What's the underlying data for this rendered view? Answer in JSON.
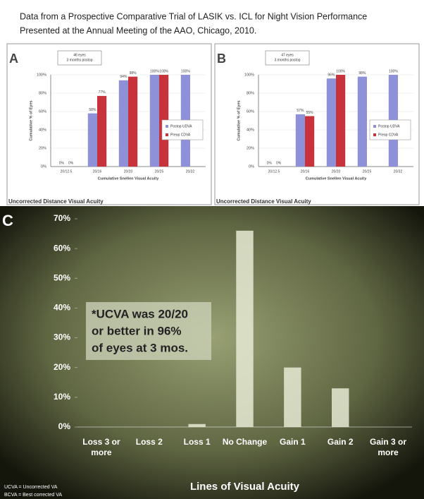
{
  "header": {
    "lines": [
      "Data from a Prospective Comparative Trial of LASIK vs. ICL for Night Vision Performance",
      "Presented at the Annual Meeting of the AAO, Chicago, 2010."
    ]
  },
  "chart_data": [
    {
      "type": "bar",
      "panel_label": "A",
      "annotation": [
        "46 eyes",
        "3 months postop"
      ],
      "y_label": "Cumulative % of Eyes",
      "x_label": "Cumulative Snellen Visual Acuity",
      "footer": "Uncorrected Distance Visual Acuity",
      "categories": [
        "20/12.5",
        "20/16",
        "20/20",
        "20/25",
        "20/32"
      ],
      "series": [
        {
          "name": "Postop UDVA",
          "color": "#8e90d8",
          "values": [
            0,
            58,
            94,
            100,
            100
          ],
          "value_labels": [
            "0%",
            "58%",
            "94%",
            "100%",
            "100%"
          ]
        },
        {
          "name": "Preop CDVA",
          "color": "#c8323a",
          "values": [
            0,
            77,
            98,
            100,
            null
          ],
          "value_labels": [
            "0%",
            "77%",
            "98%",
            "100%",
            null
          ]
        }
      ],
      "ylim": [
        0,
        100
      ],
      "yticks": [
        {
          "value": 0,
          "label": "0%"
        },
        {
          "value": 20,
          "label": "20%"
        },
        {
          "value": 40,
          "label": "40%"
        },
        {
          "value": 60,
          "label": "60%"
        },
        {
          "value": 80,
          "label": "80%"
        },
        {
          "value": 100,
          "label": "100%"
        }
      ],
      "grid": true,
      "legend": "right"
    },
    {
      "type": "bar",
      "panel_label": "B",
      "annotation": [
        "47 eyes",
        "3 months postop"
      ],
      "y_label": "Cumulative % of Eyes",
      "x_label": "Cumulative Snellen Visual Acuity",
      "footer": "Uncorrected Distance Visual Acuity",
      "categories": [
        "20/12.5",
        "20/16",
        "20/20",
        "20/25",
        "20/32"
      ],
      "series": [
        {
          "name": "Postop UDVA",
          "color": "#8e90d8",
          "values": [
            0,
            57,
            96,
            98,
            100
          ],
          "value_labels": [
            "0%",
            "57%",
            "96%",
            "98%",
            "100%"
          ]
        },
        {
          "name": "Preop CDVA",
          "color": "#c8323a",
          "values": [
            0,
            55,
            100,
            null,
            null
          ],
          "value_labels": [
            "0%",
            "55%",
            "100%",
            null,
            null
          ]
        }
      ],
      "ylim": [
        0,
        100
      ],
      "yticks": [
        {
          "value": 0,
          "label": "0%"
        },
        {
          "value": 20,
          "label": "20%"
        },
        {
          "value": 40,
          "label": "40%"
        },
        {
          "value": 60,
          "label": "60%"
        },
        {
          "value": 80,
          "label": "80%"
        },
        {
          "value": 100,
          "label": "100%"
        }
      ],
      "grid": true,
      "legend": "right"
    },
    {
      "type": "bar",
      "panel_label": "C",
      "annotation": [
        "*UCVA was 20/20",
        "or better in 96%",
        "of eyes at 3 mos."
      ],
      "x_label": "Lines of Visual Acuity",
      "footnotes": [
        "UCVA = Uncorrected VA",
        "BCVA = Best corrected VA"
      ],
      "categories": [
        "Loss 3 or more",
        "Loss 2",
        "Loss 1",
        "No Change",
        "Gain 1",
        "Gain 2",
        "Gain 3 or more"
      ],
      "values": [
        0,
        0,
        1,
        66,
        20,
        13,
        0
      ],
      "color": "#e6ead4",
      "ylim": [
        0,
        70
      ],
      "yticks": [
        {
          "value": 0,
          "label": "0%"
        },
        {
          "value": 10,
          "label": "10%"
        },
        {
          "value": 20,
          "label": "20%"
        },
        {
          "value": 30,
          "label": "30%"
        },
        {
          "value": 40,
          "label": "40%"
        },
        {
          "value": 50,
          "label": "50%"
        },
        {
          "value": 60,
          "label": "60%"
        },
        {
          "value": 70,
          "label": "70%"
        }
      ],
      "grid": false
    }
  ]
}
